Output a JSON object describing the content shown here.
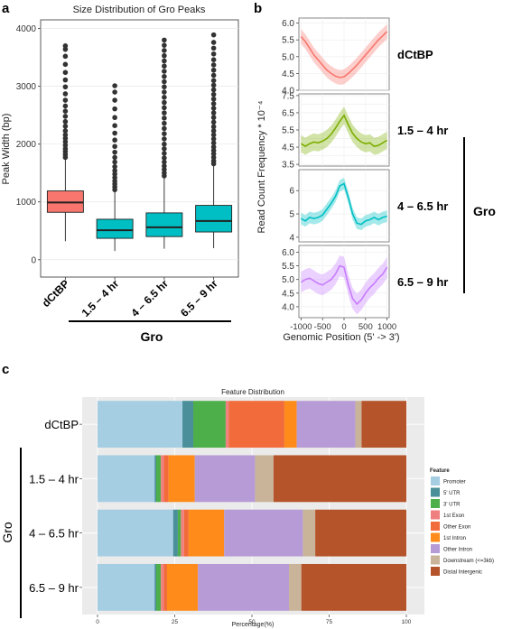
{
  "panels": {
    "a": "a",
    "b": "b",
    "c": "c"
  },
  "colors": {
    "dctbp": "#F8766D",
    "gro": "#00BFC4",
    "ribbon_dctbp": "#F8766D",
    "ribbon_15_4": "#7CAE00",
    "ribbon_4_65": "#00BFC4",
    "ribbon_65_9": "#C77CFF",
    "promoter": "#A6CEE3",
    "utr5": "#4A8F9A",
    "utr3": "#4DAF4A",
    "exon1": "#F08080",
    "other_exon": "#F26B3A",
    "intron1": "#FF8C1A",
    "other_intron": "#B79BD6",
    "downstream": "#C9B49A",
    "distal": "#B5532A"
  },
  "chart_data": [
    {
      "id": "a",
      "type": "boxplot",
      "title": "Size Distribution of Gro Peaks",
      "ylabel": "Peak Width (bp)",
      "ylim": [
        -300,
        4150
      ],
      "yticks": [
        0,
        1000,
        2000,
        3000,
        4000
      ],
      "categories": [
        "dCtBP",
        "1.5 – 4 hr",
        "4 – 6.5 hr",
        "6.5 – 9 hr"
      ],
      "group_label": "Gro",
      "boxes": [
        {
          "min": 320,
          "q1": 820,
          "median": 990,
          "q3": 1190,
          "max": 1740,
          "outliers": [
            1770,
            1820,
            1870,
            1920,
            1980,
            2040,
            2100,
            2160,
            2230,
            2310,
            2390,
            2480,
            2570,
            2660,
            2760,
            2870,
            2990,
            3110,
            3240,
            3380,
            3520,
            3640,
            3700
          ]
        },
        {
          "min": 150,
          "q1": 370,
          "median": 510,
          "q3": 700,
          "max": 1180,
          "outliers": [
            1210,
            1260,
            1310,
            1360,
            1420,
            1480,
            1540,
            1610,
            1690,
            1770,
            1860,
            1960,
            2070,
            2190,
            2320,
            2460,
            2610,
            2760,
            2900,
            3010
          ]
        },
        {
          "min": 190,
          "q1": 400,
          "median": 560,
          "q3": 810,
          "max": 1420,
          "outliers": [
            1450,
            1500,
            1560,
            1620,
            1690,
            1760,
            1840,
            1920,
            2000,
            2090,
            2180,
            2270,
            2360,
            2450,
            2540,
            2630,
            2720,
            2810,
            2900,
            2990,
            3080,
            3170,
            3260,
            3350,
            3440,
            3530,
            3620,
            3710,
            3800
          ]
        },
        {
          "min": 200,
          "q1": 480,
          "median": 670,
          "q3": 940,
          "max": 1630,
          "outliers": [
            1660,
            1710,
            1770,
            1830,
            1890,
            1950,
            2020,
            2090,
            2160,
            2230,
            2300,
            2380,
            2460,
            2540,
            2620,
            2700,
            2780,
            2860,
            2940,
            3020,
            3100,
            3190,
            3280,
            3370,
            3460,
            3560,
            3660,
            3760,
            3890
          ]
        }
      ]
    },
    {
      "id": "b",
      "type": "line",
      "xlabel": "Genomic Position (5' -> 3')",
      "ylabel": "Read Count Frequency * 10⁻⁴",
      "xlim": [
        -1050,
        1050
      ],
      "xtick_labels": [
        "-1000",
        "-500",
        "0",
        "500",
        "1000"
      ],
      "xtick_values": [
        -1000,
        -500,
        0,
        500,
        1000
      ],
      "x": [
        -1000,
        -900,
        -800,
        -700,
        -600,
        -500,
        -400,
        -300,
        -200,
        -100,
        0,
        100,
        200,
        300,
        400,
        500,
        600,
        700,
        800,
        900,
        1000
      ],
      "group_label": "Gro",
      "series": [
        {
          "name": "dCtBP",
          "ylim": [
            4.0,
            6.15
          ],
          "yticks": [
            4.0,
            4.5,
            5.0,
            5.5,
            6.0
          ],
          "values": [
            5.6,
            5.45,
            5.25,
            5.05,
            4.9,
            4.75,
            4.6,
            4.5,
            4.42,
            4.38,
            4.4,
            4.5,
            4.62,
            4.75,
            4.9,
            5.05,
            5.2,
            5.35,
            5.5,
            5.62,
            5.75
          ],
          "band": 0.22
        },
        {
          "name": "1.5 – 4 hr",
          "ylim": [
            3.4,
            7.6
          ],
          "yticks": [
            3.5,
            4.5,
            5.5,
            6.5,
            7.5
          ],
          "ytick_labels": [
            "3.5",
            "4.5",
            "5.5",
            "6.5",
            "7.5"
          ],
          "ytick_labels_extra": [
            "4.0",
            "5.0",
            "6.0",
            "7.0"
          ],
          "values": [
            4.7,
            4.55,
            4.7,
            4.8,
            4.75,
            4.85,
            5.0,
            5.25,
            5.6,
            6.0,
            6.35,
            5.8,
            5.3,
            5.0,
            4.8,
            4.7,
            4.75,
            4.55,
            4.6,
            4.75,
            4.9
          ],
          "band": 0.5
        },
        {
          "name": "4 – 6.5 hr",
          "ylim": [
            3.8,
            6.9
          ],
          "yticks": [
            4,
            5,
            6
          ],
          "values": [
            4.8,
            4.7,
            4.85,
            4.8,
            4.85,
            4.95,
            5.2,
            5.45,
            5.75,
            6.2,
            6.3,
            5.7,
            5.0,
            4.6,
            4.55,
            4.7,
            4.75,
            4.85,
            4.75,
            4.85,
            4.9
          ],
          "band": 0.25
        },
        {
          "name": "6.5 – 9 hr",
          "ylim": [
            3.6,
            6.25
          ],
          "yticks": [
            4.0,
            4.5,
            5.0,
            5.5,
            6.0
          ],
          "values": [
            4.9,
            5.0,
            5.05,
            4.95,
            4.85,
            4.8,
            4.9,
            5.0,
            5.2,
            5.5,
            5.45,
            4.8,
            4.3,
            4.1,
            4.25,
            4.5,
            4.7,
            4.85,
            5.05,
            5.2,
            5.45
          ],
          "band": 0.38
        }
      ]
    },
    {
      "id": "c",
      "type": "stacked_bar_horizontal",
      "title": "Feature Distribution",
      "xlabel": "Percentage(%)",
      "xlim": [
        0,
        100
      ],
      "xticks": [
        0,
        25,
        50,
        75,
        100
      ],
      "categories": [
        "dCtBP",
        "1.5 – 4 hr",
        "4 – 6.5 hr",
        "6.5 – 9 hr"
      ],
      "group_label": "Gro",
      "legend_title": "Feature",
      "legend_position": "right",
      "features": [
        "Promoter",
        "5' UTR",
        "3' UTR",
        "1st Exon",
        "Other Exon",
        "1st Intron",
        "Other Intron",
        "Downstream (<=3kb)",
        "Distal Intergenic"
      ],
      "feature_color_keys": [
        "promoter",
        "utr5",
        "utr3",
        "exon1",
        "other_exon",
        "intron1",
        "other_intron",
        "downstream",
        "distal"
      ],
      "values": [
        [
          27.5,
          3.5,
          10.5,
          1.0,
          18.0,
          4.0,
          19.0,
          2.0,
          14.5
        ],
        [
          18.5,
          0.5,
          1.5,
          1.0,
          1.5,
          8.5,
          19.5,
          6.0,
          43.0
        ],
        [
          24.5,
          1.5,
          1.0,
          1.0,
          1.5,
          11.5,
          25.5,
          4.0,
          29.5
        ],
        [
          18.5,
          0.5,
          1.5,
          1.0,
          1.0,
          10.0,
          29.5,
          4.0,
          34.0
        ]
      ]
    }
  ]
}
